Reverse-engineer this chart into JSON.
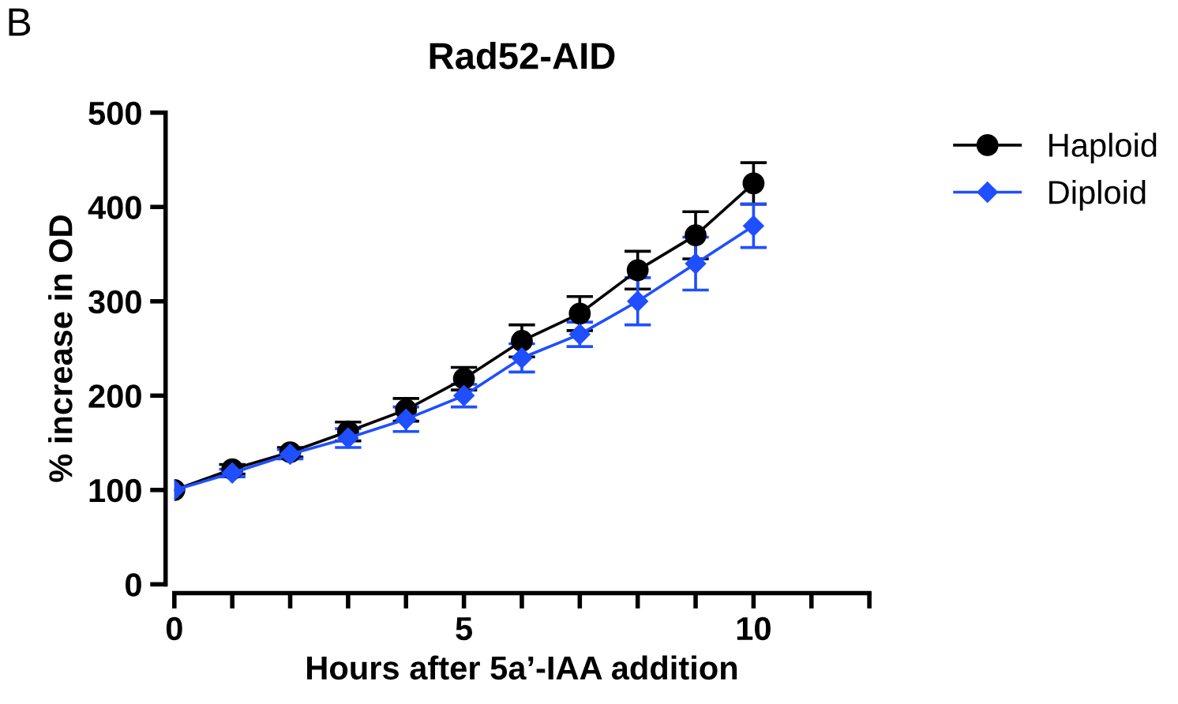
{
  "chart_data": {
    "type": "line",
    "title": "Rad52-AID",
    "xlabel": "Hours after 5a’-IAA addition",
    "ylabel": "% increase in OD",
    "annotations": [
      "B"
    ],
    "x": [
      0,
      1,
      2,
      3,
      4,
      5,
      6,
      7,
      8,
      9,
      10
    ],
    "series": [
      {
        "name": "Haploid",
        "color": "#000000",
        "marker": "circle",
        "values": [
          100,
          122,
          140,
          162,
          185,
          218,
          258,
          287,
          333,
          370,
          425
        ],
        "errors": [
          null,
          5,
          5,
          10,
          12,
          12,
          17,
          18,
          20,
          25,
          22
        ]
      },
      {
        "name": "Diploid",
        "color": "#1f4fff",
        "marker": "diamond",
        "values": [
          100,
          118,
          138,
          155,
          175,
          200,
          240,
          265,
          300,
          340,
          380
        ],
        "errors": [
          null,
          4,
          5,
          10,
          13,
          12,
          15,
          13,
          25,
          28,
          23
        ]
      }
    ],
    "xlim": [
      0,
      12
    ],
    "xticks": [
      0,
      {
        "value": 1,
        "label": null
      },
      {
        "value": 2,
        "label": null
      },
      {
        "value": 3,
        "label": null
      },
      {
        "value": 4,
        "label": null
      },
      5,
      {
        "value": 6,
        "label": null
      },
      {
        "value": 7,
        "label": null
      },
      {
        "value": 8,
        "label": null
      },
      {
        "value": 9,
        "label": null
      },
      10,
      {
        "value": 11,
        "label": null
      },
      {
        "value": 12,
        "label": null
      }
    ],
    "ylim": [
      0,
      500
    ],
    "yticks": [
      0,
      100,
      200,
      300,
      400,
      500
    ],
    "grid": false,
    "legend": "top right",
    "line_style": "solid"
  }
}
